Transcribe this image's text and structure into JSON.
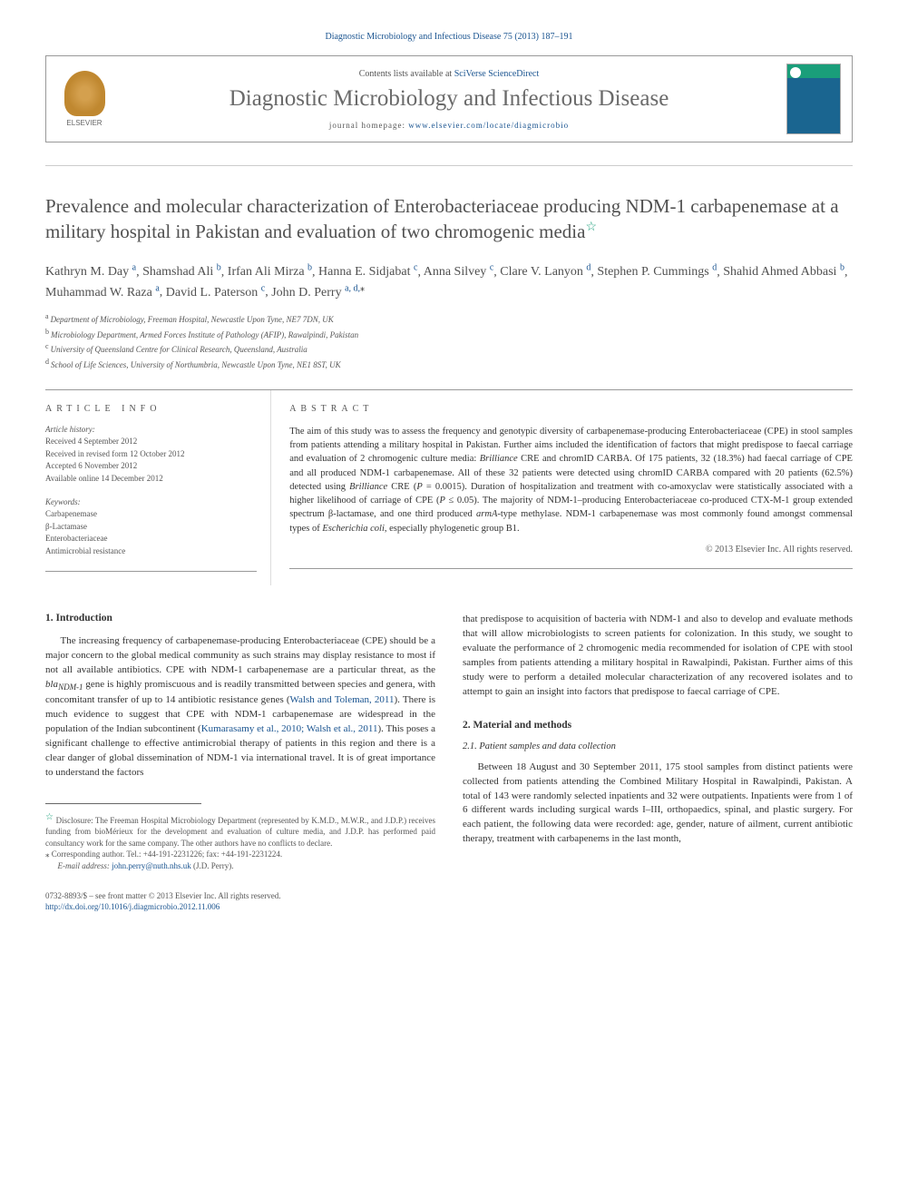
{
  "top_link": "Diagnostic Microbiology and Infectious Disease 75 (2013) 187–191",
  "header": {
    "contents_prefix": "Contents lists available at ",
    "contents_link": "SciVerse ScienceDirect",
    "journal_title": "Diagnostic Microbiology and Infectious Disease",
    "homepage_prefix": "journal homepage: ",
    "homepage_link": "www.elsevier.com/locate/diagmicrobio",
    "elsevier_label": "ELSEVIER"
  },
  "article": {
    "title_part1": "Prevalence and molecular characterization of Enterobacteriaceae producing NDM-1 carbapenemase at a military hospital in Pakistan and evaluation of two chromogenic media",
    "star": "☆"
  },
  "authors": [
    {
      "name": "Kathryn M. Day",
      "aff": "a"
    },
    {
      "name": "Shamshad Ali",
      "aff": "b"
    },
    {
      "name": "Irfan Ali Mirza",
      "aff": "b"
    },
    {
      "name": "Hanna E. Sidjabat",
      "aff": "c"
    },
    {
      "name": "Anna Silvey",
      "aff": "c"
    },
    {
      "name": "Clare V. Lanyon",
      "aff": "d"
    },
    {
      "name": "Stephen P. Cummings",
      "aff": "d"
    },
    {
      "name": "Shahid Ahmed Abbasi",
      "aff": "b"
    },
    {
      "name": "Muhammad W. Raza",
      "aff": "a"
    },
    {
      "name": "David L. Paterson",
      "aff": "c"
    },
    {
      "name": "John D. Perry",
      "aff": "a, d,",
      "corr": true
    }
  ],
  "affiliations": {
    "a": "Department of Microbiology, Freeman Hospital, Newcastle Upon Tyne, NE7 7DN, UK",
    "b": "Microbiology Department, Armed Forces Institute of Pathology (AFIP), Rawalpindi, Pakistan",
    "c": "University of Queensland Centre for Clinical Research, Queensland, Australia",
    "d": "School of Life Sciences, University of Northumbria, Newcastle Upon Tyne, NE1 8ST, UK"
  },
  "article_info": {
    "heading": "ARTICLE INFO",
    "history_label": "Article history:",
    "history": [
      "Received 4 September 2012",
      "Received in revised form 12 October 2012",
      "Accepted 6 November 2012",
      "Available online 14 December 2012"
    ],
    "keywords_label": "Keywords:",
    "keywords": [
      "Carbapenemase",
      "β-Lactamase",
      "Enterobacteriaceae",
      "Antimicrobial resistance"
    ]
  },
  "abstract": {
    "heading": "ABSTRACT",
    "text_parts": [
      "The aim of this study was to assess the frequency and genotypic diversity of carbapenemase-producing Enterobacteriaceae (CPE) in stool samples from patients attending a military hospital in Pakistan. Further aims included the identification of factors that might predispose to faecal carriage and evaluation of 2 chromogenic culture media: ",
      "Brilliance",
      " CRE and chromID CARBA. Of 175 patients, 32 (18.3%) had faecal carriage of CPE and all produced NDM-1 carbapenemase. All of these 32 patients were detected using chromID CARBA compared with 20 patients (62.5%) detected using ",
      "Brilliance",
      " CRE (",
      "P",
      " = 0.0015). Duration of hospitalization and treatment with co-amoxyclav were statistically associated with a higher likelihood of carriage of CPE (",
      "P",
      " ≤ 0.05). The majority of NDM-1–producing Enterobacteriaceae co-produced CTX-M-1 group extended spectrum β-lactamase, and one third produced ",
      "armA",
      "-type methylase. NDM-1 carbapenemase was most commonly found amongst commensal types of ",
      "Escherichia coli",
      ", especially phylogenetic group B1."
    ],
    "copyright": "© 2013 Elsevier Inc. All rights reserved."
  },
  "body": {
    "intro_heading": "1. Introduction",
    "intro_p1_parts": [
      "The increasing frequency of carbapenemase-producing Enterobacteriaceae (CPE) should be a major concern to the global medical community as such strains may display resistance to most if not all available antibiotics. CPE with NDM-1 carbapenemase are a particular threat, as the ",
      {
        "ital": true,
        "text": "bla"
      },
      {
        "sub": true,
        "ital": true,
        "text": "NDM-1"
      },
      " gene is highly promiscuous and is readily transmitted between species and genera, with concomitant transfer of up to 14 antibiotic resistance genes (",
      {
        "link": true,
        "text": "Walsh and Toleman, 2011"
      },
      "). There is much evidence to suggest that CPE with NDM-1 carbapenemase are widespread in the population of the Indian subcontinent (",
      {
        "link": true,
        "text": "Kumarasamy et al., 2010; Walsh et al., 2011"
      },
      "). This poses a significant challenge to effective antimicrobial therapy of patients in this region and there is a clear danger of global dissemination of NDM-1 via international travel. It is of great importance to understand the factors"
    ],
    "intro_p1_cont": "that predispose to acquisition of bacteria with NDM-1 and also to develop and evaluate methods that will allow microbiologists to screen patients for colonization. In this study, we sought to evaluate the performance of 2 chromogenic media recommended for isolation of CPE with stool samples from patients attending a military hospital in Rawalpindi, Pakistan. Further aims of this study were to perform a detailed molecular characterization of any recovered isolates and to attempt to gain an insight into factors that predispose to faecal carriage of CPE.",
    "methods_heading": "2. Material and methods",
    "methods_sub": "2.1. Patient samples and data collection",
    "methods_p1": "Between 18 August and 30 September 2011, 175 stool samples from distinct patients were collected from patients attending the Combined Military Hospital in Rawalpindi, Pakistan. A total of 143 were randomly selected inpatients and 32 were outpatients. Inpatients were from 1 of 6 different wards including surgical wards I–III, orthopaedics, spinal, and plastic surgery. For each patient, the following data were recorded: age, gender, nature of ailment, current antibiotic therapy, treatment with carbapenems in the last month,"
  },
  "footnotes": {
    "disclosure_star": "☆",
    "disclosure": " Disclosure: The Freeman Hospital Microbiology Department (represented by K.M.D., M.W.R., and J.D.P.) receives funding from bioMérieux for the development and evaluation of culture media, and J.D.P. has performed paid consultancy work for the same company. The other authors have no conflicts to declare.",
    "corr_star": "⁎",
    "corr": " Corresponding author. Tel.: +44-191-2231226; fax: +44-191-2231224.",
    "email_label": "E-mail address: ",
    "email": "john.perry@nuth.nhs.uk",
    "email_suffix": " (J.D. Perry)."
  },
  "footer": {
    "issn": "0732-8893/$ – see front matter © 2013 Elsevier Inc. All rights reserved.",
    "doi": "http://dx.doi.org/10.1016/j.diagmicrobio.2012.11.006"
  },
  "colors": {
    "link": "#1a5490",
    "accent": "#1a9e7a",
    "text": "#333333",
    "muted": "#555555",
    "border": "#999999"
  }
}
